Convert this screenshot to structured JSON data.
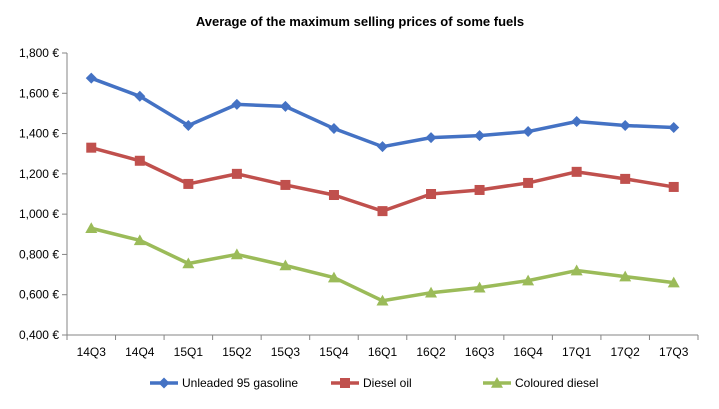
{
  "chart_data": {
    "type": "line",
    "title": "Average of the maximum selling prices of some fuels",
    "categories": [
      "14Q3",
      "14Q4",
      "15Q1",
      "15Q2",
      "15Q3",
      "15Q4",
      "16Q1",
      "16Q2",
      "16Q3",
      "16Q4",
      "17Q1",
      "17Q2",
      "17Q3"
    ],
    "ylim": [
      0.4,
      1.8
    ],
    "yticks": [
      0.4,
      0.6,
      0.8,
      1.0,
      1.2,
      1.4,
      1.6,
      1.8
    ],
    "ytick_labels": [
      "0,400 €",
      "0,600 €",
      "0,800 €",
      "1,000 €",
      "1,200 €",
      "1,400 €",
      "1,600 €",
      "1,800 €"
    ],
    "grid": false,
    "legend_position": "bottom",
    "series": [
      {
        "name": "Unleaded 95 gasoline",
        "color": "#4472C4",
        "marker": "diamond",
        "values": [
          1.675,
          1.585,
          1.44,
          1.545,
          1.535,
          1.425,
          1.335,
          1.38,
          1.39,
          1.41,
          1.46,
          1.44,
          1.43
        ]
      },
      {
        "name": "Diesel oil",
        "color": "#C0504D",
        "marker": "square",
        "values": [
          1.33,
          1.265,
          1.15,
          1.2,
          1.145,
          1.095,
          1.015,
          1.1,
          1.12,
          1.155,
          1.21,
          1.175,
          1.135
        ]
      },
      {
        "name": "Coloured diesel",
        "color": "#9BBB59",
        "marker": "triangle",
        "values": [
          0.93,
          0.87,
          0.755,
          0.8,
          0.745,
          0.685,
          0.57,
          0.61,
          0.635,
          0.67,
          0.72,
          0.69,
          0.66
        ]
      }
    ]
  }
}
